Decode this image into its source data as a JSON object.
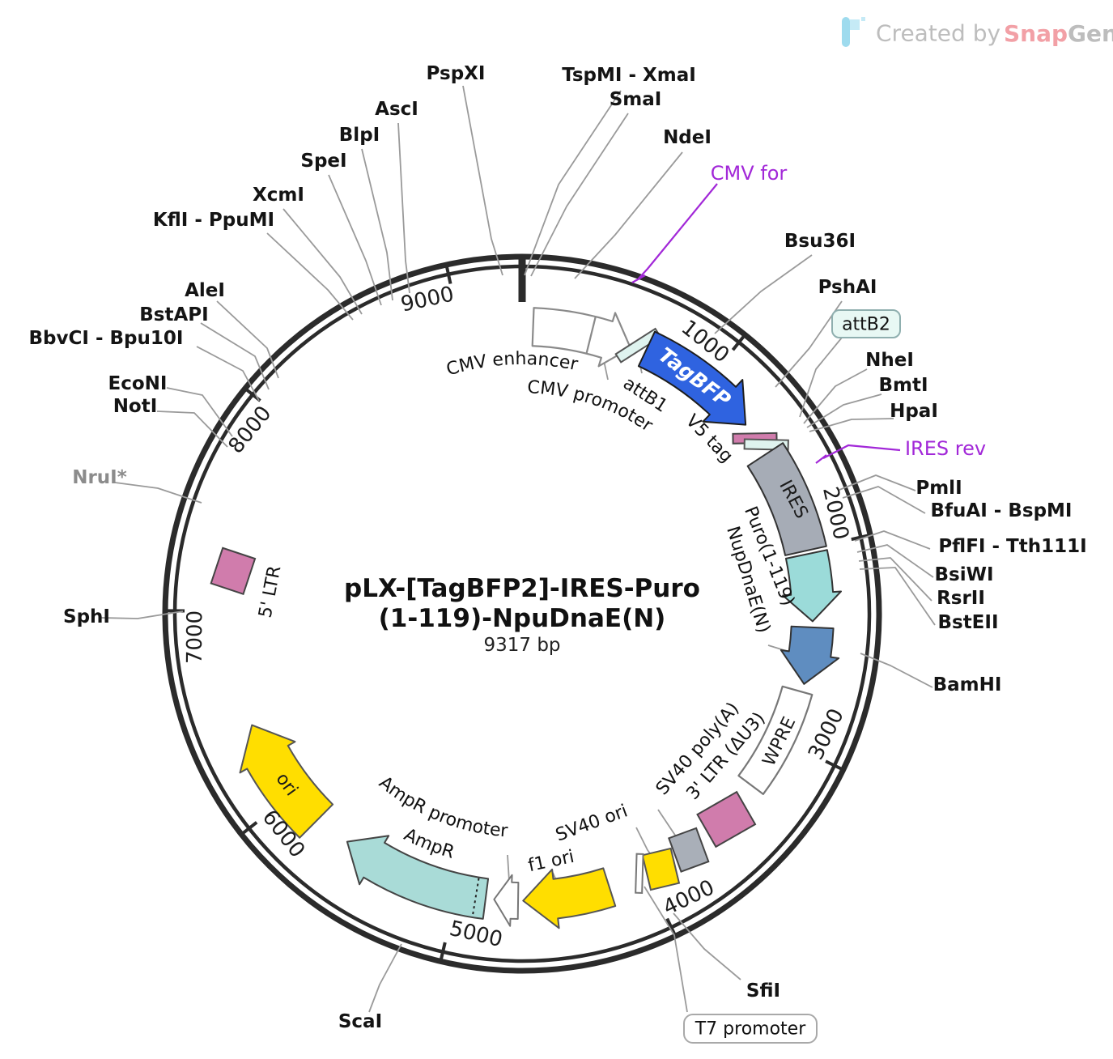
{
  "watermark": {
    "prefix": "Created by",
    "brand_snap": "Snap",
    "brand_gene": "Gene"
  },
  "title": {
    "line1": "pLX-[TagBFP2]-IRES-Puro",
    "line2": "(1-119)-NpuDnaE(N)",
    "size": "9317 bp"
  },
  "ticks": [
    "1000",
    "2000",
    "3000",
    "4000",
    "5000",
    "6000",
    "7000",
    "8000",
    "9000"
  ],
  "sites": {
    "pspxi": "PspXI",
    "tspmi_xmai": "TspMI - XmaI",
    "smai": "SmaI",
    "asci": "AscI",
    "blpi": "BlpI",
    "ndei": "NdeI",
    "spei": "SpeI",
    "xcmi": "XcmI",
    "kfli_ppumi": "KflI - PpuMI",
    "bsu36i": "Bsu36I",
    "alei": "AleI",
    "pshai": "PshAI",
    "bstapi": "BstAPI",
    "bbvci_bpu10i": "BbvCI - Bpu10I",
    "nhei": "NheI",
    "bmti": "BmtI",
    "econi": "EcoNI",
    "hpai": "HpaI",
    "noti": "NotI",
    "nrui": "NruI*",
    "pmli": "PmlI",
    "bfuai_bspmi": "BfuAI - BspMI",
    "pflfi_tth111i": "PflFI - Tth111I",
    "bsiwi": "BsiWI",
    "rsrii": "RsrII",
    "bsteii": "BstEII",
    "bamhi": "BamHI",
    "sphi": "SphI",
    "scai": "ScaI",
    "sfii": "SfiI"
  },
  "primers": {
    "cmv_for": "CMV for",
    "ires_rev": "IRES rev"
  },
  "features": {
    "cmv_enhancer": "CMV enhancer",
    "cmv_promoter": "CMV promoter",
    "attb1": "attB1",
    "tagbfp": "TagBFP",
    "v5_tag": "V5 tag",
    "attb2": "attB2",
    "ires": "IRES",
    "puro": "Puro(1-119)",
    "npudnae": "NupDnaE(N)",
    "wpre": "WPRE",
    "ltr3": "3' LTR (ΔU3)",
    "sv40_polya": "SV40 poly(A)",
    "sv40_ori": "SV40 ori",
    "t7_promoter": "T7 promoter",
    "f1_ori": "f1 ori",
    "ampr_promoter": "AmpR promoter",
    "ampr": "AmpR",
    "ori": "ori",
    "ltr5": "5' LTR"
  },
  "colors": {
    "backbone": "#2b2b2b",
    "connector": "#9A9A9A",
    "primer": "#A228D8",
    "tagbfp_fill": "#2F63E0",
    "ires_fill": "#A6ACB6",
    "puro_fill": "#9BDBD9",
    "npu_fill": "#5F8DC0",
    "ltr_fill": "#D07CAC",
    "gray_box_fill": "#A9AFB8",
    "yellow_fill": "#FFDE00",
    "ampr_fill": "#A9DBD7",
    "att_fill": "#DFF3EF",
    "white_fill": "#FFFFFF",
    "logo_snap": "#F2A0A6",
    "logo_gray": "#BDBDBD",
    "logo_icon": "#9EDBEE"
  }
}
